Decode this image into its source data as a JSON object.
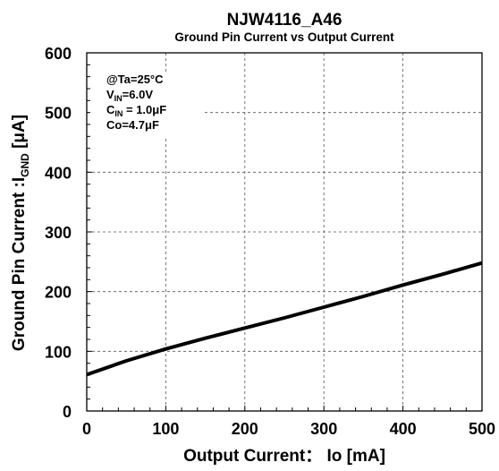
{
  "chart_data": {
    "type": "line",
    "title": "NJW4116_A46",
    "subtitle": "Ground Pin Current vs Output Current",
    "xlabel": "Output Current： Io [mA]",
    "ylabel": {
      "main": "Ground Pin Current :I",
      "sub": "GND",
      "suffix": " [μA]"
    },
    "xlim": [
      0,
      500
    ],
    "ylim": [
      0,
      600
    ],
    "x_ticks": [
      "0",
      "100",
      "200",
      "300",
      "400",
      "500"
    ],
    "y_ticks": [
      "0",
      "100",
      "200",
      "300",
      "400",
      "500",
      "600"
    ],
    "grid": true,
    "conditions": [
      {
        "main": "@Ta=25°C",
        "sub": "",
        "suffix": ""
      },
      {
        "main": "V",
        "sub": "IN",
        "suffix": "=6.0V"
      },
      {
        "main": "C",
        "sub": "IN",
        "suffix": " = 1.0μF"
      },
      {
        "main": "Co=4.7μF",
        "sub": "",
        "suffix": ""
      }
    ],
    "series": [
      {
        "color": "#000000",
        "x": [
          0,
          50,
          100,
          150,
          200,
          250,
          300,
          350,
          400,
          450,
          500
        ],
        "y": [
          61,
          84,
          104,
          122,
          139,
          156,
          174,
          192,
          211,
          229,
          248
        ]
      }
    ]
  }
}
